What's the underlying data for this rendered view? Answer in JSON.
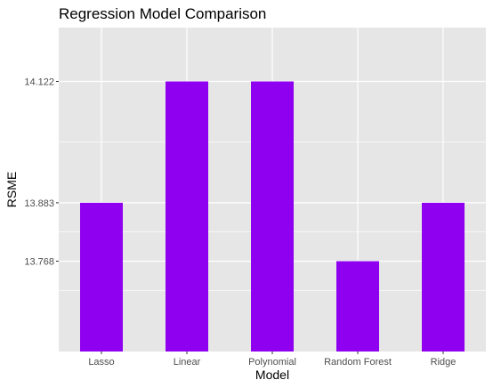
{
  "chart_data": {
    "type": "bar",
    "title": "Regression Model Comparison",
    "xlabel": "Model",
    "ylabel": "RSME",
    "categories": [
      "Lasso",
      "Linear",
      "Polynomial",
      "Random Forest",
      "Ridge"
    ],
    "values": [
      13.883,
      14.122,
      14.122,
      13.768,
      13.883
    ],
    "y_tick_labels": [
      "13.768",
      "13.883",
      "14.122"
    ],
    "grid": true,
    "legend": "none",
    "colors": {
      "bar": "#8f00f0",
      "panel": "#e6e6e6",
      "grid": "#ffffff"
    }
  }
}
